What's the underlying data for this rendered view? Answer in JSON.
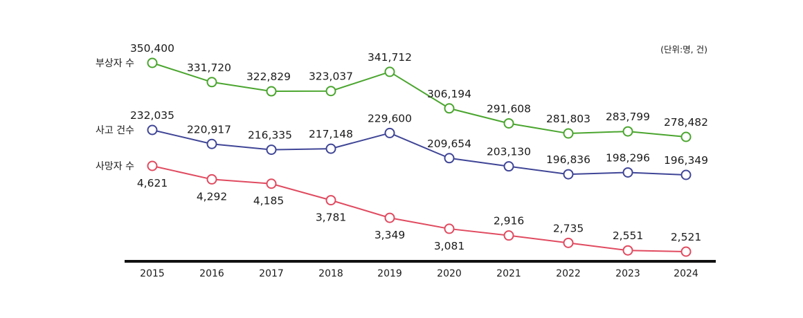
{
  "chart_data": {
    "type": "line",
    "unit_note": "(단위:명, 건)",
    "categories": [
      "2015",
      "2016",
      "2017",
      "2018",
      "2019",
      "2020",
      "2021",
      "2022",
      "2023",
      "2024"
    ],
    "series": [
      {
        "name": "부상자 수",
        "color": "#4aa52e",
        "values": [
          350400,
          331720,
          322829,
          323037,
          341712,
          306194,
          291608,
          281803,
          283799,
          278482
        ],
        "value_labels": [
          "350,400",
          "331,720",
          "322,829",
          "323,037",
          "341,712",
          "306,194",
          "291,608",
          "281,803",
          "283,799",
          "278,482"
        ]
      },
      {
        "name": "사고 건수",
        "color": "#3f4596",
        "values": [
          232035,
          220917,
          216335,
          217148,
          229600,
          209654,
          203130,
          196836,
          198296,
          196349
        ],
        "value_labels": [
          "232,035",
          "220,917",
          "216,335",
          "217,148",
          "229,600",
          "209,654",
          "203,130",
          "196,836",
          "198,296",
          "196,349"
        ]
      },
      {
        "name": "사망자 수",
        "color": "#e04a5f",
        "values": [
          4621,
          4292,
          4185,
          3781,
          3349,
          3081,
          2916,
          2735,
          2551,
          2521
        ],
        "value_labels": [
          "4,621",
          "4,292",
          "4,185",
          "3,781",
          "3,349",
          "3,081",
          "2,916",
          "2,735",
          "2,551",
          "2,521"
        ]
      }
    ]
  }
}
